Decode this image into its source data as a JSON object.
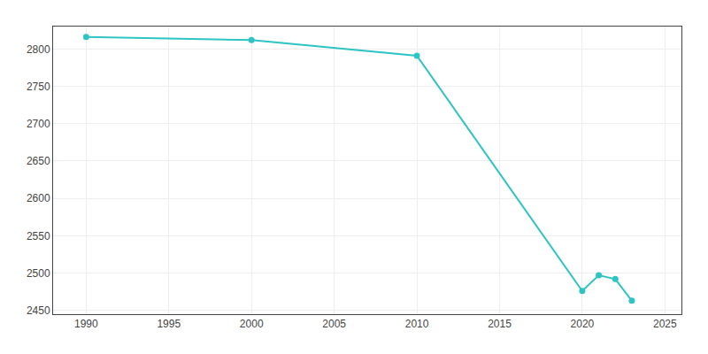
{
  "chart_data": {
    "type": "line",
    "x": [
      1990,
      2000,
      2010,
      2020,
      2021,
      2022,
      2023
    ],
    "values": [
      2816,
      2812,
      2791,
      2476,
      2497,
      2492,
      2463
    ],
    "color": "#2EC4C4",
    "marker": "circle",
    "xlim": [
      1988,
      2026
    ],
    "ylim": [
      2445,
      2830
    ],
    "xticks": [
      1990,
      1995,
      2000,
      2005,
      2010,
      2015,
      2020,
      2025
    ],
    "yticks": [
      2450,
      2500,
      2550,
      2600,
      2650,
      2700,
      2750,
      2800
    ],
    "grid": true
  }
}
